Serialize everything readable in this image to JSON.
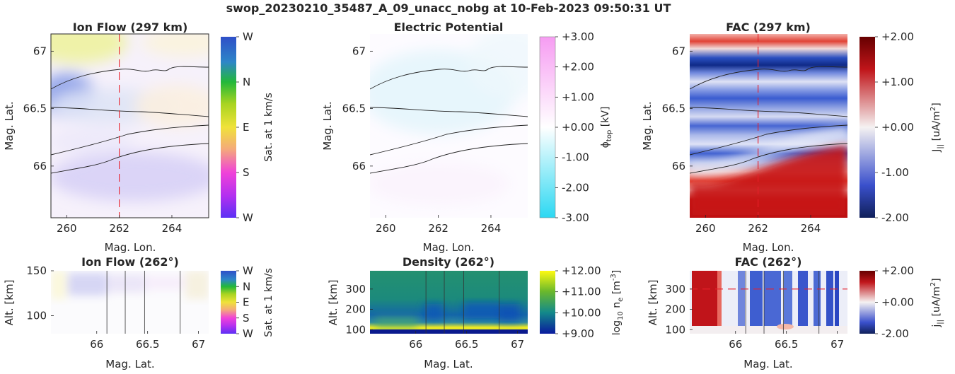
{
  "figure": {
    "suptitle": "swop_20230210_35487_A_09_unacc_nobg at 10-Feb-2023 09:50:31 UT"
  },
  "chart_data": [
    {
      "type": "heatmap",
      "id": "ion-flow-map",
      "title": "Ion Flow (297 km)",
      "xlabel": "Mag. Lon.",
      "ylabel": "Mag. Lat.",
      "xlim": [
        259.4,
        265.4
      ],
      "ylim": [
        65.55,
        67.15
      ],
      "xticks": [
        "260",
        "262",
        "264"
      ],
      "yticks": [
        "66",
        "66.5",
        "67"
      ],
      "colorbar": {
        "labels": [
          "W",
          "N",
          "E",
          "S",
          "W"
        ],
        "label": "Sat. at 1 km/s"
      },
      "marker_longitude": 262
    },
    {
      "type": "heatmap",
      "id": "potential-map",
      "title": "Electric Potential",
      "xlabel": "Mag. Lon.",
      "ylabel": "Mag. Lat.",
      "xlim": [
        259.4,
        265.4
      ],
      "ylim": [
        65.55,
        67.15
      ],
      "xticks": [
        "260",
        "262",
        "264"
      ],
      "yticks": [
        "66",
        "66.5",
        "67"
      ],
      "colorbar": {
        "labels": [
          "+3.00",
          "+2.00",
          "+1.00",
          "+0.00",
          "-1.00",
          "-2.00",
          "-3.00"
        ],
        "label": "ϕ",
        "label_sub": "top",
        "label_unit": " [kV]",
        "range": [
          -3,
          3
        ]
      }
    },
    {
      "type": "heatmap",
      "id": "fac-map",
      "title": "FAC (297 km)",
      "xlabel": "Mag. Lon.",
      "ylabel": "Mag. Lat.",
      "xlim": [
        259.4,
        265.4
      ],
      "ylim": [
        65.55,
        67.15
      ],
      "xticks": [
        "260",
        "262",
        "264"
      ],
      "yticks": [
        "66",
        "66.5",
        "67"
      ],
      "colorbar": {
        "labels": [
          "+2.00",
          "+1.00",
          "+0.00",
          "-1.00",
          "-2.00"
        ],
        "label": "J",
        "label_sub": "||",
        "label_unit": " [uA/m",
        "label_sup": "2",
        "label_end": "]",
        "range": [
          -2,
          2
        ]
      },
      "marker_longitude": 262
    },
    {
      "type": "heatmap",
      "id": "ion-flow-alt",
      "title": "Ion Flow (262°)",
      "xlabel": "Mag. Lat.",
      "ylabel": "Alt. [km]",
      "xlim": [
        65.55,
        67.1
      ],
      "ylim": [
        80,
        150
      ],
      "xticks": [
        "66",
        "66.5",
        "67"
      ],
      "yticks": [
        "100",
        "150"
      ],
      "colorbar": {
        "labels": [
          "W",
          "N",
          "E",
          "S",
          "W"
        ],
        "label": "Sat. at 1 km/s"
      },
      "boundaries": [
        66.1,
        66.28,
        66.47,
        66.82
      ]
    },
    {
      "type": "heatmap",
      "id": "density-alt",
      "title": "Density (262°)",
      "xlabel": "Mag. Lat.",
      "ylabel": "Alt. [km]",
      "xlim": [
        65.55,
        67.1
      ],
      "ylim": [
        80,
        390
      ],
      "xticks": [
        "66",
        "66.5",
        "67"
      ],
      "yticks": [
        "100",
        "200",
        "300"
      ],
      "colorbar": {
        "labels": [
          "+12.00",
          "+11.00",
          "+10.00",
          "+9.00"
        ],
        "label": "log",
        "label_sub": "10",
        "label_unit": " n",
        "label_sub2": "e",
        "label_end": " [m",
        "label_sup": "-3",
        "label_close": "]",
        "range": [
          9,
          12
        ]
      },
      "boundaries": [
        66.1,
        66.28,
        66.47,
        66.82
      ]
    },
    {
      "type": "heatmap",
      "id": "fac-alt",
      "title": "FAC (262°)",
      "xlabel": "Mag. Lat.",
      "ylabel": "Alt. [km]",
      "xlim": [
        65.55,
        67.1
      ],
      "ylim": [
        80,
        390
      ],
      "xticks": [
        "66",
        "66.5",
        "67"
      ],
      "yticks": [
        "100",
        "200",
        "300"
      ],
      "colorbar": {
        "labels": [
          "+2.00",
          "+0.00",
          "-2.00"
        ],
        "label": "j",
        "label_sub": "||",
        "label_unit": " [uA/m",
        "label_sup": "2",
        "label_end": "]",
        "range": [
          -2,
          2
        ]
      },
      "boundaries": [
        66.1,
        66.28,
        66.47,
        66.82
      ],
      "marker_altitude": 300
    }
  ]
}
